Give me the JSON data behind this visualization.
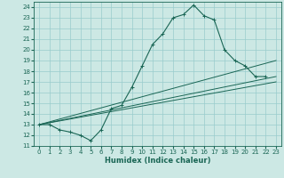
{
  "title": "",
  "xlabel": "Humidex (Indice chaleur)",
  "bg_color": "#cce8e4",
  "grid_color": "#99cccc",
  "line_color": "#1a6655",
  "xlim": [
    -0.5,
    23.5
  ],
  "ylim": [
    11,
    24.5
  ],
  "xticks": [
    0,
    1,
    2,
    3,
    4,
    5,
    6,
    7,
    8,
    9,
    10,
    11,
    12,
    13,
    14,
    15,
    16,
    17,
    18,
    19,
    20,
    21,
    22,
    23
  ],
  "yticks": [
    11,
    12,
    13,
    14,
    15,
    16,
    17,
    18,
    19,
    20,
    21,
    22,
    23,
    24
  ],
  "humidex_curve_x": [
    0,
    1,
    2,
    3,
    4,
    5,
    6,
    7,
    8,
    9,
    10,
    11,
    12,
    13,
    14,
    15,
    16,
    17,
    18,
    19,
    20,
    21,
    22
  ],
  "humidex_curve_y": [
    13.0,
    13.0,
    12.5,
    12.3,
    12.0,
    11.5,
    12.5,
    14.5,
    14.8,
    16.5,
    18.5,
    20.5,
    21.5,
    23.0,
    23.3,
    24.2,
    23.2,
    22.8,
    20.0,
    19.0,
    18.5,
    17.5,
    17.5
  ],
  "linear_lines": [
    {
      "x": [
        0,
        23
      ],
      "y": [
        13.0,
        19.0
      ]
    },
    {
      "x": [
        0,
        23
      ],
      "y": [
        13.0,
        17.5
      ]
    },
    {
      "x": [
        0,
        23
      ],
      "y": [
        13.0,
        17.0
      ]
    }
  ]
}
